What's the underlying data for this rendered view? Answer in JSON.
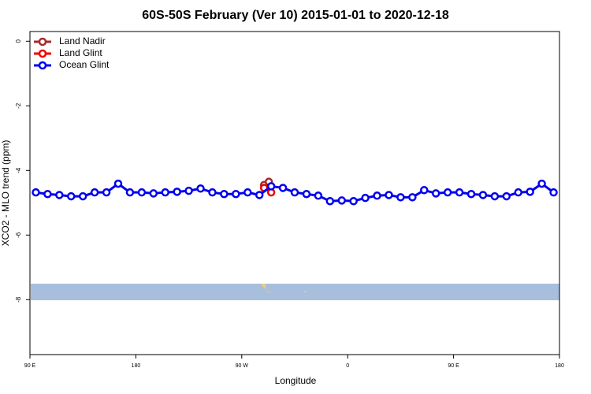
{
  "chart_data": {
    "type": "line",
    "title": "60S-50S February (Ver 10)   2015-01-01 to 2020-12-18",
    "x_label": "Longitude",
    "y_label": "XCO2 - MLO trend (ppm)",
    "xlim": [
      90,
      540
    ],
    "ylim": [
      -9.7,
      0.3
    ],
    "xticks": [
      {
        "value": 90,
        "label": "90 E"
      },
      {
        "value": 180,
        "label": "180"
      },
      {
        "value": 270,
        "label": "90 W"
      },
      {
        "value": 360,
        "label": "0"
      },
      {
        "value": 450,
        "label": "90 E"
      },
      {
        "value": 540,
        "label": "180"
      }
    ],
    "yticks": [
      0,
      -2,
      -4,
      -6,
      -8
    ],
    "legend": "top-left",
    "series": [
      {
        "name": "Land Nadir",
        "color": "#a52a2a",
        "x": [
          289,
          293
        ],
        "values": [
          -4.45,
          -4.35
        ]
      },
      {
        "name": "Land Glint",
        "color": "#ee0000",
        "x": [
          289,
          295
        ],
        "values": [
          -4.54,
          -4.68
        ]
      },
      {
        "name": "Ocean Glint",
        "color": "#0000ee",
        "x": [
          95,
          105,
          115,
          125,
          135,
          145,
          155,
          165,
          175,
          185,
          195,
          205,
          215,
          225,
          235,
          245,
          255,
          265,
          275,
          285,
          295,
          305,
          315,
          325,
          335,
          345,
          355,
          365,
          375,
          385,
          395,
          405,
          415,
          425,
          435,
          445,
          455,
          465,
          475,
          485,
          495,
          505,
          515,
          525,
          535
        ],
        "values": [
          -4.68,
          -4.73,
          -4.76,
          -4.8,
          -4.8,
          -4.68,
          -4.68,
          -4.41,
          -4.68,
          -4.68,
          -4.71,
          -4.68,
          -4.66,
          -4.63,
          -4.56,
          -4.68,
          -4.73,
          -4.73,
          -4.68,
          -4.76,
          -4.49,
          -4.54,
          -4.68,
          -4.73,
          -4.78,
          -4.95,
          -4.93,
          -4.95,
          -4.85,
          -4.78,
          -4.76,
          -4.83,
          -4.83,
          -4.61,
          -4.71,
          -4.68,
          -4.68,
          -4.73,
          -4.76,
          -4.8,
          -4.8,
          -4.68,
          -4.66,
          -4.41,
          -4.68
        ]
      }
    ]
  }
}
